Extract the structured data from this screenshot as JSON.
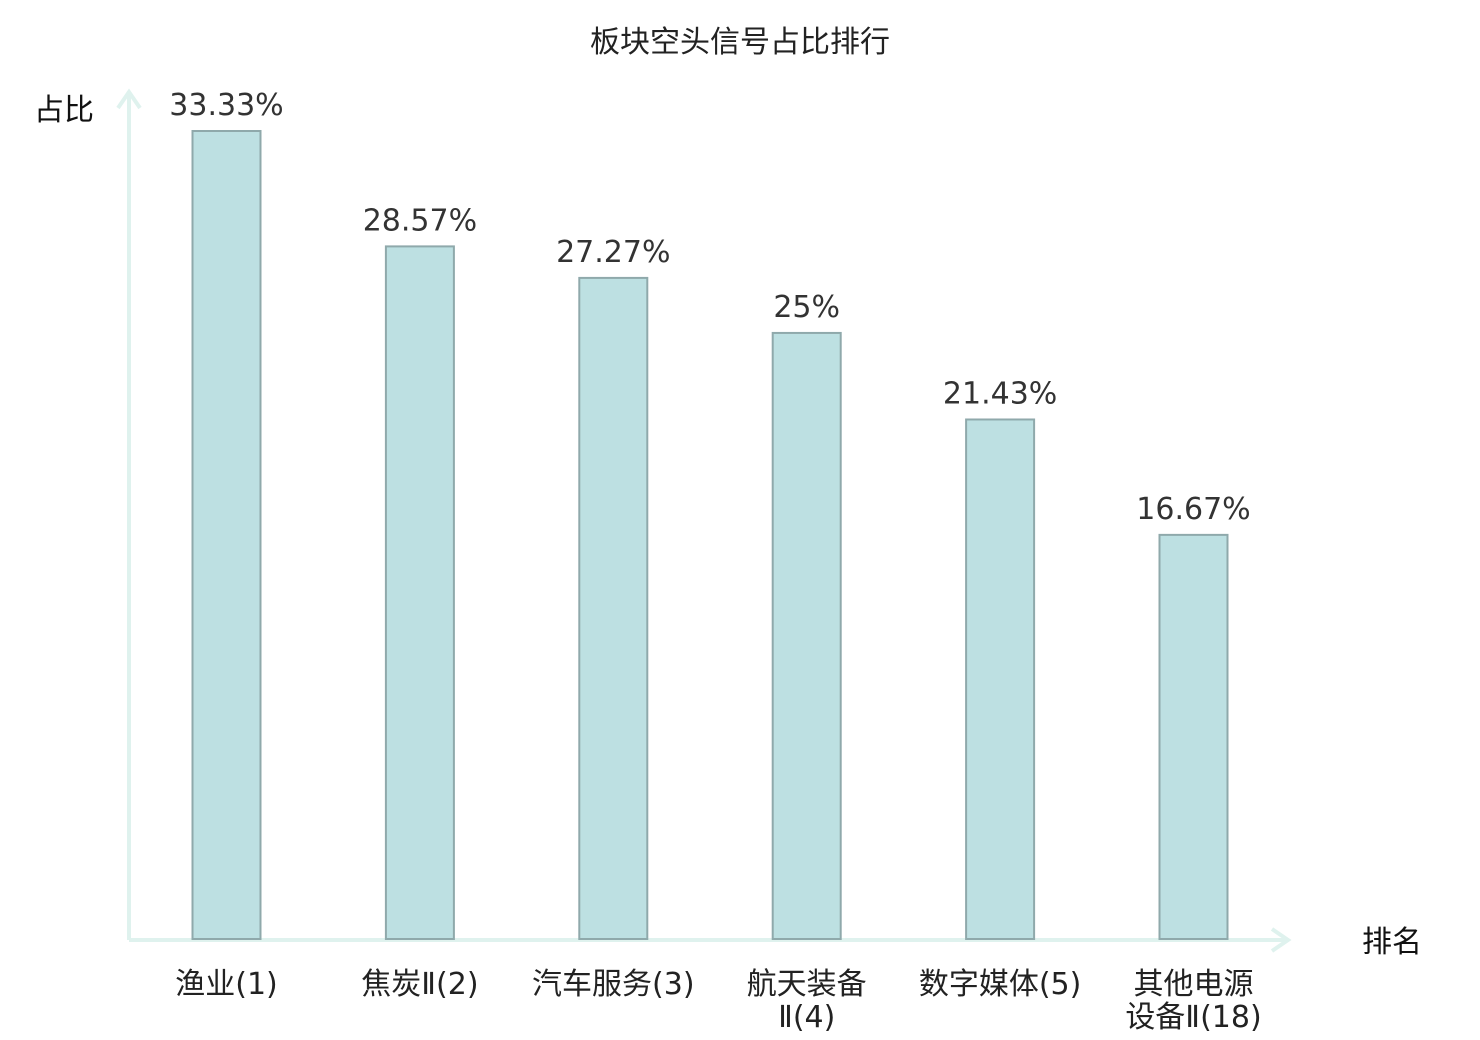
{
  "chart_data": {
    "type": "bar",
    "title": "板块空头信号占比排行",
    "ylabel": "占比",
    "xlabel": "排名",
    "ylim": [
      0,
      35
    ],
    "categories": [
      [
        "渔业(1)"
      ],
      [
        "焦炭Ⅱ(2)"
      ],
      [
        "汽车服务(3)"
      ],
      [
        "航天装备",
        "Ⅱ(4)"
      ],
      [
        "数字媒体(5)"
      ],
      [
        "其他电源",
        "设备Ⅱ(18)"
      ]
    ],
    "values": [
      33.33,
      28.57,
      27.27,
      25,
      21.43,
      16.67
    ],
    "value_labels": [
      "33.33%",
      "28.57%",
      "27.27%",
      "25%",
      "21.43%",
      "16.67%"
    ],
    "highlighted_category_index": 5,
    "grid": false
  },
  "colors": {
    "bar_fill": "#bde0e2",
    "bar_stroke": "#8fa9ab",
    "axis": "#dff2ee",
    "highlight_text": "#e0141c",
    "text": "#222222"
  }
}
